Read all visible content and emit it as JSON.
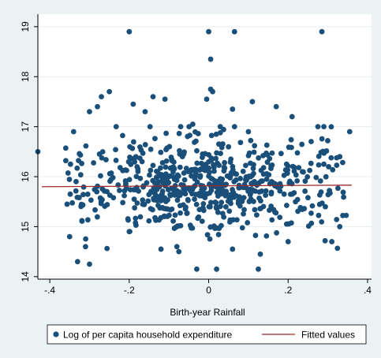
{
  "chart_data": {
    "type": "scatter",
    "title": "",
    "xlabel": "Birth-year Rainfall",
    "ylabel": "",
    "xlim": [
      -0.43,
      0.41
    ],
    "ylim": [
      13.95,
      19.25
    ],
    "x_ticks": [
      -0.4,
      -0.2,
      0,
      0.2,
      0.4
    ],
    "x_tick_labels": [
      "-.4",
      "-.2",
      "0",
      ".2",
      ".4"
    ],
    "y_ticks": [
      14,
      15,
      16,
      17,
      18,
      19
    ],
    "y_tick_labels": [
      "14",
      "15",
      "16",
      "17",
      "18",
      "19"
    ],
    "grid": true,
    "legend_position": "bottom",
    "colors": {
      "points": "#1a4f7a",
      "fit_line": "#9e2a2b",
      "plot_bg": "#ffffff",
      "outer_bg": "#eaf2f3"
    },
    "series": [
      {
        "name": "Log of per capita household expenditure",
        "type": "scatter",
        "points": [
          [
            -0.2,
            18.9
          ],
          [
            0.0,
            18.9
          ],
          [
            0.065,
            18.9
          ],
          [
            0.285,
            18.9
          ],
          [
            0.005,
            18.35
          ],
          [
            0.005,
            17.75
          ],
          [
            0.01,
            17.7
          ],
          [
            -0.005,
            17.55
          ],
          [
            -0.25,
            17.7
          ],
          [
            -0.27,
            17.6
          ],
          [
            -0.14,
            17.6
          ],
          [
            -0.11,
            17.55
          ],
          [
            0.11,
            17.5
          ],
          [
            -0.19,
            17.45
          ],
          [
            0.17,
            17.4
          ],
          [
            -0.28,
            17.4
          ],
          [
            -0.3,
            17.3
          ],
          [
            -0.16,
            17.3
          ],
          [
            0.06,
            17.35
          ],
          [
            0.21,
            17.2
          ],
          [
            0.275,
            17.0
          ],
          [
            0.29,
            17.0
          ],
          [
            0.355,
            16.9
          ],
          [
            -0.34,
            16.9
          ],
          [
            -0.43,
            16.5
          ],
          [
            -0.2,
            14.9
          ],
          [
            -0.03,
            14.15
          ],
          [
            0.02,
            14.15
          ],
          [
            0.125,
            14.15
          ],
          [
            -0.33,
            14.3
          ],
          [
            -0.3,
            14.25
          ],
          [
            -0.35,
            14.8
          ],
          [
            -0.31,
            14.6
          ],
          [
            0.31,
            14.7
          ],
          [
            0.06,
            14.55
          ],
          [
            0.13,
            14.45
          ],
          [
            -0.08,
            14.6
          ],
          [
            -0.12,
            14.55
          ],
          [
            0.2,
            14.7
          ],
          [
            0.33,
            15.0
          ],
          [
            0.33,
            16.4
          ],
          [
            0.29,
            16.25
          ],
          [
            0.1,
            16.9
          ],
          [
            -0.04,
            17.05
          ]
        ],
        "cloud": {
          "n": 640,
          "x_range": [
            -0.36,
            0.35
          ],
          "y_mean": 15.82,
          "y_sd": 0.5,
          "y_range": [
            14.5,
            17.0
          ],
          "seed": 1234
        }
      },
      {
        "name": "Fitted values",
        "type": "line",
        "points": [
          [
            -0.42,
            15.8
          ],
          [
            0.36,
            15.83
          ]
        ]
      }
    ]
  }
}
